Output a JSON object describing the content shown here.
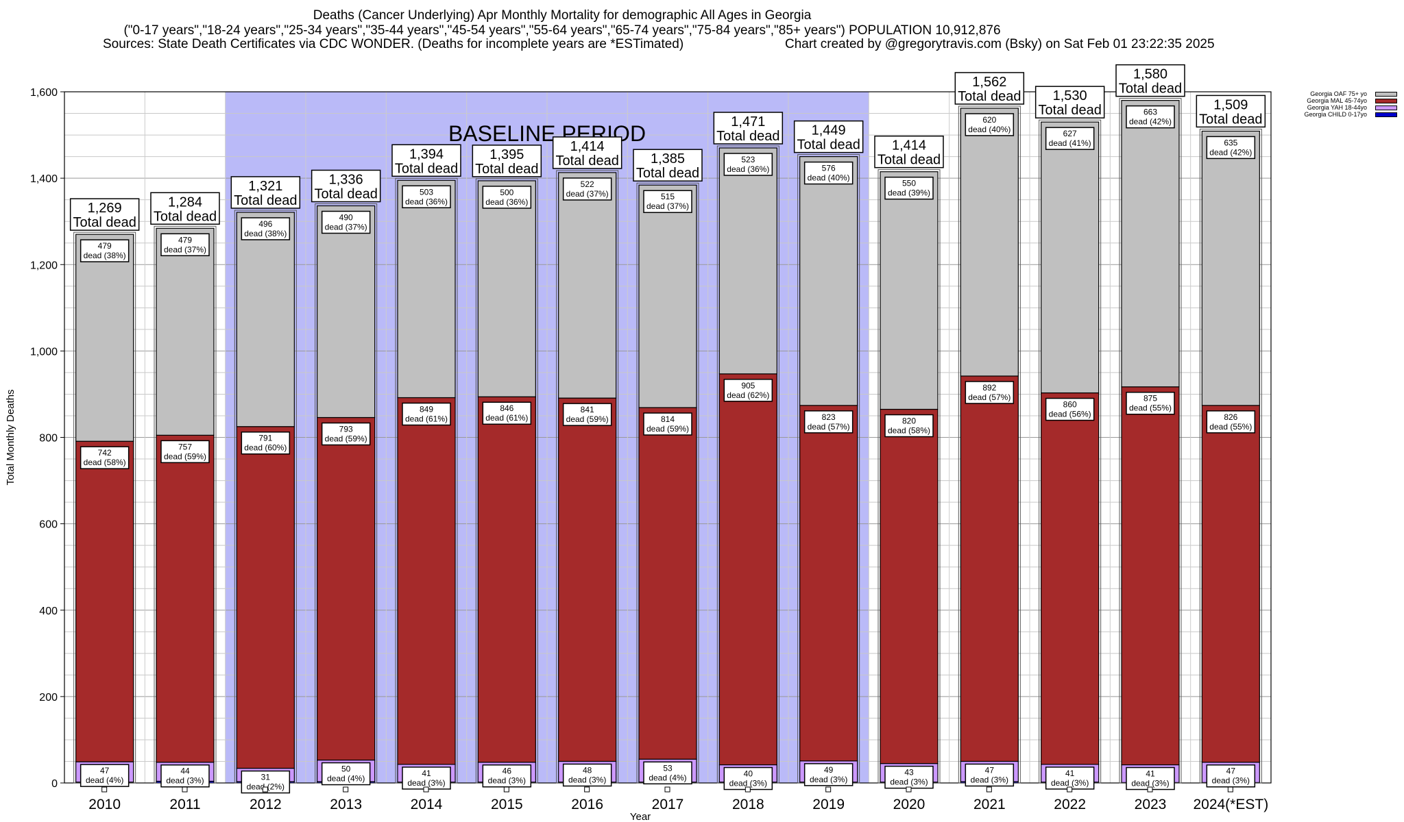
{
  "title": {
    "line1": "Deaths (Cancer Underlying) Apr Monthly Mortality for demographic All Ages in Georgia",
    "line2": "(\"0-17 years\",\"18-24 years\",\"25-34 years\",\"35-44 years\",\"45-54 years\",\"55-64 years\",\"65-74 years\",\"75-84 years\",\"85+ years\") POPULATION 10,912,876",
    "sources": "Sources: State Death Certificates via CDC WONDER. (Deaths for incomplete years are *ESTimated)",
    "credit": "Chart created by @gregorytravis.com (Bsky) on Sat Feb 01 23:22:35 2025"
  },
  "colors": {
    "oaf": "#c0c0c0",
    "mal": "#a52a2a",
    "yah": "#cc99ff",
    "child": "#0000cc",
    "baseline": "#babaf8"
  },
  "chart_data": {
    "type": "bar",
    "stacked": true,
    "ylabel": "Total Monthly Deaths",
    "xlabel": "Year",
    "ylim": [
      0,
      1600
    ],
    "yticks": [
      "0",
      "200",
      "400",
      "600",
      "800",
      "1,000",
      "1,200",
      "1,400",
      "1,600"
    ],
    "categories": [
      "2010",
      "2011",
      "2012",
      "2013",
      "2014",
      "2015",
      "2016",
      "2017",
      "2018",
      "2019",
      "2020",
      "2021",
      "2022",
      "2023",
      "2024(*EST)"
    ],
    "baseline_label": "BASELINE PERIOD",
    "baseline_range": [
      "2012",
      "2019"
    ],
    "total_suffix": "Total dead",
    "totals": [
      "1,269",
      "1,284",
      "1,321",
      "1,336",
      "1,394",
      "1,395",
      "1,414",
      "1,385",
      "1,471",
      "1,449",
      "1,414",
      "1,562",
      "1,530",
      "1,580",
      "1,509"
    ],
    "total_values": [
      1269,
      1284,
      1321,
      1336,
      1394,
      1395,
      1414,
      1385,
      1471,
      1449,
      1414,
      1562,
      1530,
      1580,
      1509
    ],
    "series": [
      {
        "name": "Georgia CHILD 0-17yo",
        "color_key": "child",
        "values": [
          2,
          4,
          3,
          3,
          2,
          2,
          2,
          2,
          2,
          2,
          2,
          3,
          2,
          1,
          1
        ]
      },
      {
        "name": "Georgia YAH 18-44yo",
        "color_key": "yah",
        "values": [
          47,
          44,
          31,
          50,
          41,
          46,
          48,
          53,
          40,
          49,
          43,
          47,
          41,
          41,
          47
        ],
        "labels": [
          "dead (4%)",
          "dead (3%)",
          "dead (2%)",
          "dead (4%)",
          "dead (3%)",
          "dead (3%)",
          "dead (3%)",
          "dead (4%)",
          "dead (3%)",
          "dead (3%)",
          "dead (3%)",
          "dead (3%)",
          "dead (3%)",
          "dead (3%)",
          "dead (3%)"
        ]
      },
      {
        "name": "Georgia MAL 45-74yo",
        "color_key": "mal",
        "values": [
          742,
          757,
          791,
          793,
          849,
          846,
          841,
          814,
          905,
          823,
          820,
          892,
          860,
          875,
          826
        ],
        "labels": [
          "dead (58%)",
          "dead (59%)",
          "dead (60%)",
          "dead (59%)",
          "dead (61%)",
          "dead (61%)",
          "dead (59%)",
          "dead (59%)",
          "dead (62%)",
          "dead (57%)",
          "dead (58%)",
          "dead (57%)",
          "dead (56%)",
          "dead (55%)",
          "dead (55%)"
        ]
      },
      {
        "name": "Georgia OAF 75+ yo",
        "color_key": "oaf",
        "values": [
          479,
          479,
          496,
          490,
          503,
          500,
          522,
          515,
          523,
          576,
          550,
          620,
          627,
          663,
          635
        ],
        "labels": [
          "dead (38%)",
          "dead (37%)",
          "dead (38%)",
          "dead (37%)",
          "dead (36%)",
          "dead (36%)",
          "dead (37%)",
          "dead (37%)",
          "dead (36%)",
          "dead (40%)",
          "dead (39%)",
          "dead (40%)",
          "dead (41%)",
          "dead (42%)",
          "dead (42%)"
        ]
      }
    ],
    "legend": [
      "Georgia OAF 75+ yo",
      "Georgia MAL 45-74yo",
      "Georgia YAH 18-44yo",
      "Georgia CHILD 0-17yo"
    ],
    "legend_position": "top-right",
    "grid": true
  }
}
